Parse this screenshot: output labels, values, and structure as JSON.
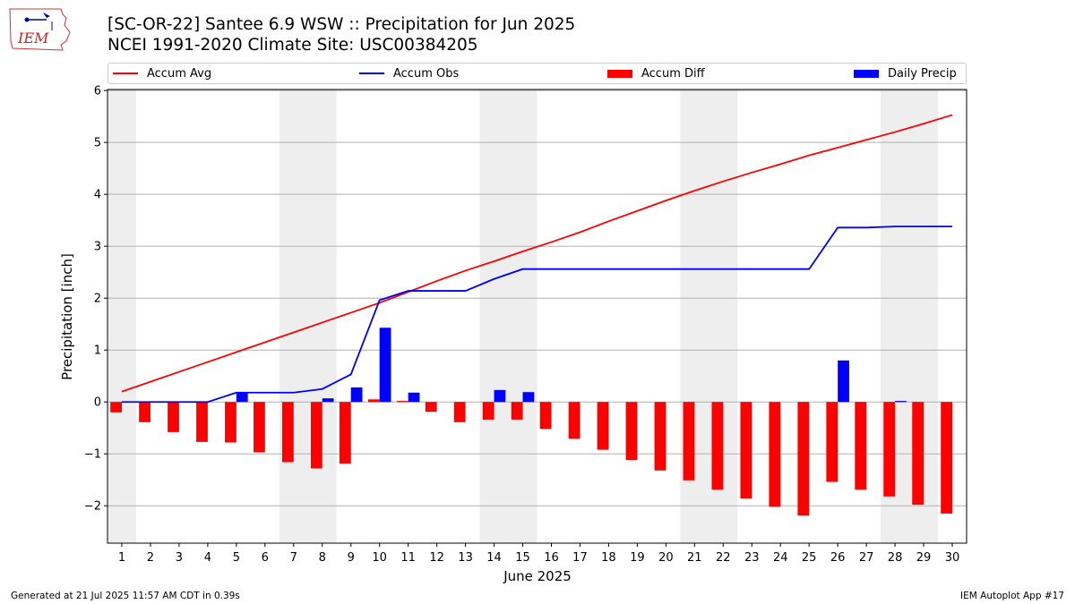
{
  "logo": {
    "text": "IEM",
    "icon": "iem-iowa-logo-icon"
  },
  "title": {
    "line1": "[SC-OR-22] Santee 6.9 WSW :: Precipitation for Jun 2025",
    "line2": "NCEI 1991-2020 Climate Site: USC00384205"
  },
  "legend": {
    "accum_avg": "Accum Avg",
    "accum_obs": "Accum Obs",
    "accum_diff": "Accum Diff",
    "daily_precip": "Daily Precip"
  },
  "footer": {
    "left": "Generated at 21 Jul 2025 11:57 AM CDT in 0.39s",
    "right": "IEM Autoplot App #17"
  },
  "colors": {
    "avg": "#ff0000",
    "obs": "#0000ff",
    "diff": "#ff0000",
    "daily": "#0000ff",
    "weekend_shade": "#eeeeee",
    "grid": "#b0b0b0"
  },
  "chart_data": {
    "type": "bar",
    "xlabel": "June 2025",
    "ylabel": "Precipitation [inch]",
    "xlim": [
      0.5,
      30.5
    ],
    "ylim": [
      -2.72,
      6.02
    ],
    "yticks": [
      -2,
      -1,
      0,
      1,
      2,
      3,
      4,
      5,
      6
    ],
    "ytick_labels": [
      "−2",
      "−1",
      "0",
      "1",
      "2",
      "3",
      "4",
      "5",
      "6"
    ],
    "grid": "horizontal",
    "legend_position": "top",
    "days": [
      1,
      2,
      3,
      4,
      5,
      6,
      7,
      8,
      9,
      10,
      11,
      12,
      13,
      14,
      15,
      16,
      17,
      18,
      19,
      20,
      21,
      22,
      23,
      24,
      25,
      26,
      27,
      28,
      29,
      30
    ],
    "shaded_days": [
      [
        1,
        1
      ],
      [
        7,
        8
      ],
      [
        14,
        15
      ],
      [
        21,
        22
      ],
      [
        28,
        29
      ]
    ],
    "series": [
      {
        "name": "Accum Avg",
        "kind": "line",
        "values": [
          0.2,
          0.39,
          0.58,
          0.77,
          0.96,
          1.15,
          1.34,
          1.53,
          1.72,
          1.91,
          2.12,
          2.33,
          2.53,
          2.71,
          2.9,
          3.08,
          3.27,
          3.48,
          3.68,
          3.88,
          4.07,
          4.25,
          4.42,
          4.58,
          4.75,
          4.9,
          5.05,
          5.2,
          5.36,
          5.53
        ]
      },
      {
        "name": "Accum Obs",
        "kind": "line",
        "values": [
          0,
          0,
          0,
          0,
          0.18,
          0.18,
          0.18,
          0.25,
          0.53,
          1.96,
          2.14,
          2.14,
          2.14,
          2.37,
          2.56,
          2.56,
          2.56,
          2.56,
          2.56,
          2.56,
          2.56,
          2.56,
          2.56,
          2.56,
          2.56,
          3.36,
          3.36,
          3.38,
          3.38,
          3.38
        ]
      },
      {
        "name": "Accum Diff",
        "kind": "bar",
        "values": [
          -0.2,
          -0.39,
          -0.58,
          -0.77,
          -0.78,
          -0.97,
          -1.16,
          -1.28,
          -1.19,
          0.05,
          0.02,
          -0.19,
          -0.39,
          -0.34,
          -0.34,
          -0.52,
          -0.71,
          -0.92,
          -1.12,
          -1.32,
          -1.51,
          -1.69,
          -1.86,
          -2.02,
          -2.19,
          -1.54,
          -1.69,
          -1.82,
          -1.98,
          -2.15
        ]
      },
      {
        "name": "Daily Precip",
        "kind": "bar",
        "values": [
          0,
          0,
          0,
          0,
          0.18,
          0,
          0,
          0.07,
          0.28,
          1.43,
          0.18,
          0,
          0,
          0.23,
          0.19,
          0,
          0,
          0,
          0,
          0,
          0,
          0,
          0,
          0,
          0,
          0.8,
          0,
          0.02,
          0,
          0
        ]
      }
    ]
  }
}
